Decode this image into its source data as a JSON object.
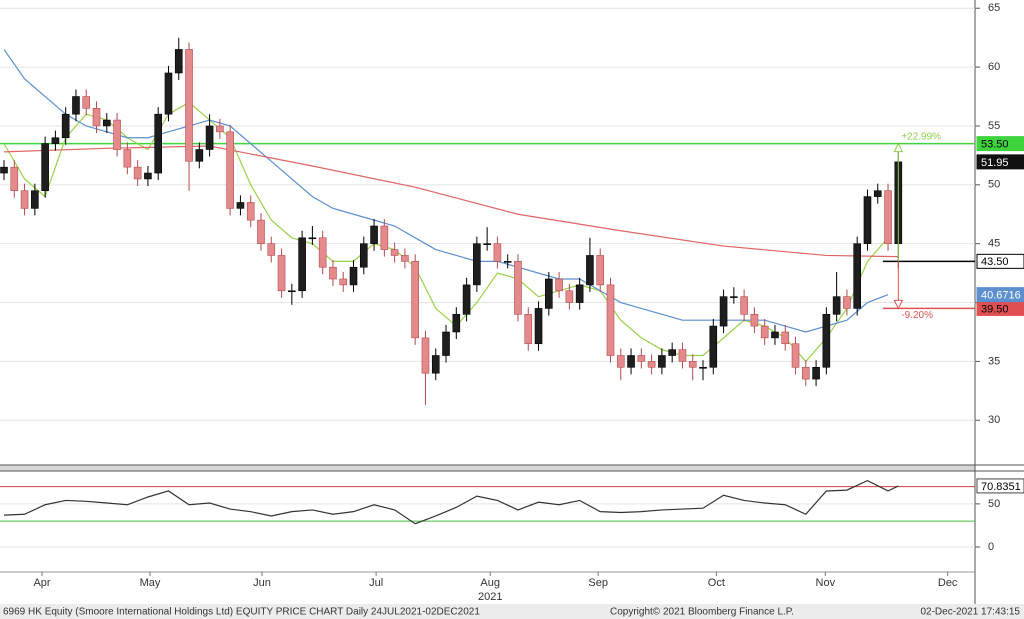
{
  "chart_data": [
    {
      "type": "candlestick",
      "open": [
        51,
        51.5,
        49.5,
        48,
        49.5,
        53.5,
        54,
        56,
        57.5,
        56.5,
        55,
        55.5,
        53,
        51.5,
        50.5,
        51,
        56,
        59.5,
        61.5,
        52,
        53,
        55,
        54.5,
        48,
        48.5,
        47,
        45,
        44,
        41,
        41,
        45.5,
        45.5,
        43,
        42,
        41.5,
        43,
        45,
        46.5,
        44.5,
        44,
        43.5,
        37,
        34,
        35.5,
        37.5,
        39,
        41.5,
        45,
        45,
        43.5,
        43.5,
        39,
        36.5,
        39.5,
        42,
        41,
        40,
        41.5,
        44,
        41.5,
        35.5,
        34.5,
        35.5,
        35,
        34.5,
        35.5,
        36,
        35,
        34.5,
        34.5,
        38,
        40.5,
        40.5,
        39,
        38,
        37,
        37.5,
        36.5,
        34.5,
        33.5,
        34.5,
        39,
        40.5,
        39.5,
        45,
        49,
        49.5,
        45
      ],
      "high": [
        52.1,
        52.1,
        50.1,
        50.1,
        54.1,
        54.6,
        56.6,
        58.1,
        58.1,
        57.1,
        56.1,
        56.1,
        53.6,
        52.1,
        51.6,
        56.6,
        60.1,
        62.5,
        62.1,
        53.6,
        56,
        55.6,
        55.1,
        49.1,
        49.1,
        47.6,
        45.6,
        44.6,
        41.6,
        46.1,
        46.5,
        46.1,
        43.6,
        42.6,
        43.6,
        45.6,
        47.1,
        47.1,
        45.1,
        44.6,
        44.1,
        37.6,
        36.1,
        38.1,
        39.6,
        42.1,
        45.6,
        46.4,
        45.6,
        44.1,
        44.1,
        39.6,
        40.1,
        42.6,
        42.6,
        41.6,
        42.1,
        45.5,
        44.6,
        42.1,
        36.1,
        36.1,
        36.1,
        35.6,
        36.1,
        36.6,
        36.6,
        35.6,
        35.1,
        38.6,
        41.1,
        41.3,
        41.1,
        39.6,
        38.6,
        38.1,
        38.1,
        37.1,
        35.1,
        35.1,
        39.6,
        42.6,
        41.1,
        45.6,
        49.6,
        50.1,
        50.1,
        53.5
      ],
      "low": [
        50.4,
        48.9,
        47.4,
        47.4,
        48.9,
        52.9,
        53.4,
        55.4,
        55.9,
        54.4,
        54.4,
        52.4,
        50.9,
        49.9,
        49.9,
        50.4,
        55.4,
        58.9,
        49.5,
        51.4,
        52.4,
        53.9,
        47.4,
        47.4,
        46.4,
        44.4,
        43.4,
        40.4,
        39.8,
        40.4,
        44.9,
        42.4,
        41.4,
        40.9,
        40.9,
        42.4,
        44.4,
        43.9,
        43.4,
        42.9,
        36.4,
        31.3,
        33.4,
        34.9,
        36.9,
        38.4,
        40.9,
        44.4,
        42.9,
        42.9,
        38.4,
        35.9,
        35.9,
        38.9,
        40.4,
        39.4,
        39.4,
        40.9,
        40.9,
        34.9,
        33.4,
        33.9,
        34.4,
        33.9,
        33.9,
        34.9,
        34.4,
        33.4,
        33.4,
        33.9,
        37.4,
        39.9,
        38.4,
        37.4,
        36.4,
        36.4,
        35.9,
        33.9,
        32.9,
        32.9,
        33.9,
        38.4,
        38.9,
        38.9,
        44.4,
        48.4,
        44.4,
        42.9
      ],
      "close": [
        51.5,
        49.5,
        48,
        49.5,
        53.5,
        54,
        56,
        57.5,
        56.5,
        55,
        55.5,
        53,
        51.5,
        50.5,
        51,
        56,
        59.5,
        61.5,
        52,
        53,
        55,
        54.5,
        48,
        48.5,
        47,
        45,
        44,
        41,
        41,
        45.5,
        45.5,
        43,
        42,
        41.5,
        43,
        45,
        46.5,
        44.5,
        44,
        43.5,
        37,
        34,
        35.5,
        37.5,
        39,
        41.5,
        45,
        45,
        43.5,
        43.5,
        39,
        36.5,
        39.5,
        42,
        41,
        40,
        41.5,
        44,
        41.5,
        35.5,
        34.5,
        35.5,
        35,
        34.5,
        35.5,
        36,
        35,
        34.5,
        34.5,
        38,
        40.5,
        40.5,
        39,
        38,
        37,
        37.5,
        36.5,
        34.5,
        33.5,
        34.5,
        39,
        40.5,
        39.5,
        45,
        49,
        49.5,
        45,
        51.95
      ],
      "up_color": "#1e1e1e",
      "down_color": "#e58a8c",
      "series": [
        {
          "color": "#9ad14a",
          "x": [
            0,
            2,
            4,
            6,
            8,
            10,
            12,
            14,
            16,
            18,
            20,
            22,
            24,
            26,
            28,
            30,
            32,
            34,
            36,
            38,
            40,
            42,
            44,
            46,
            48,
            50,
            52,
            54,
            56,
            58,
            60,
            62,
            64,
            66,
            68,
            70,
            72,
            74,
            76,
            78,
            80,
            82,
            84,
            86
          ],
          "values": [
            53.5,
            50.5,
            49,
            54,
            56,
            55.5,
            54,
            53,
            56,
            57,
            55.5,
            54,
            50,
            47,
            45.5,
            45,
            43.5,
            43.5,
            45,
            44.5,
            43,
            39.5,
            38,
            40,
            42.5,
            42,
            40.5,
            41,
            41.5,
            41,
            38.5,
            37,
            36,
            35.5,
            35.5,
            37,
            38.5,
            38,
            37,
            35,
            37,
            39.5,
            43.5,
            45.5
          ]
        },
        {
          "color": "#5b8fd0",
          "last_tag": true,
          "x": [
            0,
            2,
            4,
            6,
            8,
            10,
            12,
            14,
            16,
            18,
            20,
            22,
            24,
            26,
            28,
            30,
            32,
            34,
            36,
            38,
            40,
            42,
            44,
            46,
            48,
            50,
            52,
            54,
            56,
            58,
            60,
            62,
            64,
            66,
            68,
            70,
            72,
            74,
            76,
            78,
            80,
            82,
            84,
            86
          ],
          "values": [
            61.5,
            59,
            57.5,
            56,
            55,
            54.5,
            54,
            54,
            54.5,
            55,
            55.5,
            55,
            53.5,
            52,
            50.5,
            49,
            48,
            47.5,
            47,
            46.5,
            45.5,
            44.5,
            44,
            43.5,
            43.5,
            43,
            42.5,
            42,
            42,
            41,
            40,
            39.5,
            39,
            38.5,
            38.5,
            38.5,
            38.5,
            38.5,
            38,
            37.5,
            38,
            38.5,
            40,
            40.6716
          ]
        },
        {
          "color": "#e06464",
          "x": [
            0,
            10,
            20,
            30,
            40,
            50,
            60,
            70,
            80,
            87
          ],
          "values": [
            52.8,
            53.1,
            53.3,
            51.6,
            49.8,
            47.5,
            46.1,
            44.8,
            44.0,
            43.9
          ]
        }
      ],
      "levels": [
        {
          "value": 53.5,
          "label": "53.50",
          "color": "#3ed43e",
          "extent": "full",
          "change": "+22.99%",
          "change_color": "#8fcf4a"
        },
        {
          "value": 43.5,
          "label": "43.50",
          "color": "#000000",
          "extent": "right",
          "base": true
        },
        {
          "value": 39.5,
          "label": "39.50",
          "color": "#e05050",
          "extent": "right",
          "change": "-9.20%",
          "change_color": "#e05050"
        }
      ],
      "ylim": [
        26.2,
        65.7
      ],
      "yticks": [
        30,
        35,
        40,
        45,
        50,
        55,
        60,
        65
      ],
      "grid": true,
      "xlim": [
        -0.39,
        94.46
      ],
      "xticks": [
        {
          "value": 3.7,
          "label": "Apr"
        },
        {
          "value": 14.2,
          "label": "May"
        },
        {
          "value": 25.1,
          "label": "Jun"
        },
        {
          "value": 36.2,
          "label": "Jul"
        },
        {
          "value": 47.3,
          "label": "Aug"
        },
        {
          "value": 57.8,
          "label": "Sep"
        },
        {
          "value": 69.3,
          "label": "Oct"
        },
        {
          "value": 79.9,
          "label": "Nov"
        },
        {
          "value": 91.8,
          "label": "Dec"
        }
      ],
      "year": "2021"
    },
    {
      "type": "line",
      "color": "#333333",
      "x": [
        0,
        2,
        4,
        6,
        8,
        10,
        12,
        14,
        16,
        18,
        20,
        22,
        24,
        26,
        28,
        30,
        32,
        34,
        36,
        38,
        40,
        42,
        44,
        46,
        48,
        50,
        52,
        54,
        56,
        58,
        60,
        62,
        64,
        66,
        68,
        70,
        72,
        74,
        76,
        78,
        80,
        82,
        84,
        86,
        87
      ],
      "values": [
        37,
        38,
        49,
        54,
        53,
        51,
        49,
        58,
        65,
        49,
        51,
        44,
        41,
        36,
        41,
        43,
        38,
        41,
        49,
        43,
        27,
        36,
        46,
        59,
        54,
        43,
        52,
        49,
        54,
        41,
        40,
        41,
        43,
        44,
        45,
        60,
        54,
        51,
        49,
        38,
        65,
        66,
        77,
        65,
        70.8351
      ],
      "levels": [
        {
          "value": 70,
          "color": "#d04040"
        },
        {
          "value": 30,
          "color": "#40c040"
        }
      ],
      "ylim": [
        -29,
        87
      ],
      "yticks": [
        50,
        0
      ],
      "grid": true,
      "xlim": [
        -0.39,
        94.46
      ]
    }
  ],
  "footer": {
    "left": "6969 HK Equity (Smoore International Holdings Ltd) EQUITY PRICE CHART  Daily 24JUL2021-02DEC2021",
    "center": "Copyright© 2021 Bloomberg Finance L.P.",
    "right": "02-Dec-2021 17:43:15"
  }
}
